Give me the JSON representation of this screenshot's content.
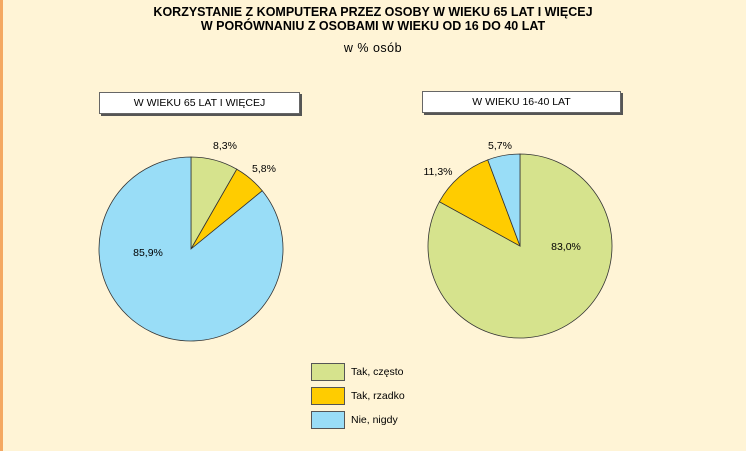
{
  "title_line1": "KORZYSTANIE Z KOMPUTERA PRZEZ OSOBY W WIEKU 65 LAT I WIĘCEJ",
  "title_line2": "W PORÓWNANIU Z OSOBAMI W WIEKU OD 16 DO 40 LAT",
  "subtitle": "w % osób",
  "colors": {
    "background": "#fff4d6",
    "tak_czesto": "#d6e38d",
    "tak_rzadko": "#ffcc00",
    "nie_nigdy": "#99ddf7"
  },
  "chart_data": [
    {
      "type": "pie",
      "title": "W WIEKU 65 LAT I WIĘCEJ",
      "categories": [
        "Tak, często",
        "Tak, rzadko",
        "Nie, nigdy"
      ],
      "values": [
        8.3,
        5.8,
        85.9
      ],
      "labels": [
        "8,3%",
        "5,8%",
        "85,9%"
      ]
    },
    {
      "type": "pie",
      "title": "W WIEKU 16-40 LAT",
      "categories": [
        "Tak, często",
        "Tak, rzadko",
        "Nie, nigdy"
      ],
      "values": [
        83.0,
        11.3,
        5.7
      ],
      "labels": [
        "83,0%",
        "11,3%",
        "5,7%"
      ]
    }
  ],
  "legend": [
    {
      "label": "Tak, często",
      "color": "#d6e38d"
    },
    {
      "label": "Tak, rzadko",
      "color": "#ffcc00"
    },
    {
      "label": "Nie, nigdy",
      "color": "#99ddf7"
    }
  ]
}
